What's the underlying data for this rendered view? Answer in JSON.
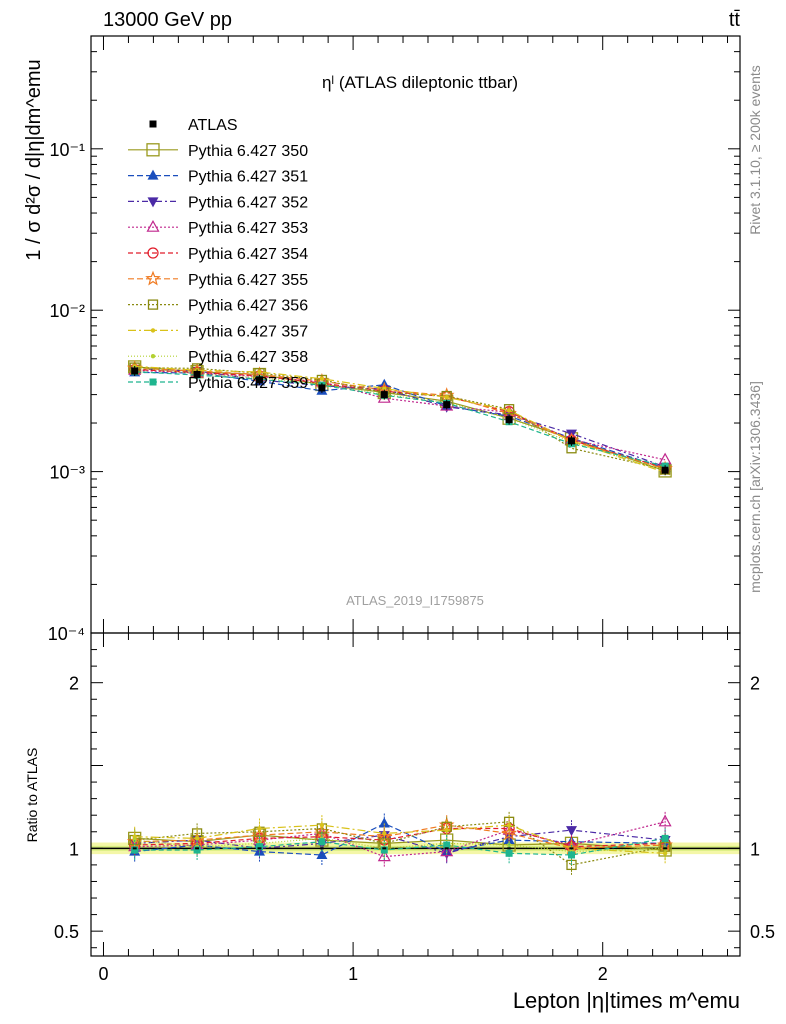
{
  "header": {
    "left": "13000 GeV pp",
    "right": "tt̄"
  },
  "side_labels": {
    "upper": "Rivet 3.1.10, ≥ 200k events",
    "lower": "mcplots.cern.ch [arXiv:1306.3436]"
  },
  "plot_title": "ηˡ (ATLAS dileptonic ttbar)",
  "analysis_label": "ATLAS_2019_I1759875",
  "chart_data": {
    "type": "line",
    "x_label": "Lepton |η|times m^emu",
    "y_label_top": "1 / σ d²σ / d|η|dm^emu",
    "y_label_ratio": "Ratio to ATLAS",
    "xlim": [
      -0.05,
      2.55
    ],
    "ylim_top": [
      0.0001,
      0.5
    ],
    "ylim_ratio": [
      0.35,
      2.3
    ],
    "log_y_top": true,
    "x_ticks": [
      "0",
      "1",
      "2"
    ],
    "y_ticks_top": [
      "10⁻¹",
      "10⁻²",
      "10⁻³",
      "10⁻⁴"
    ],
    "y_ticks_ratio": [
      "2",
      "1",
      "0.5"
    ],
    "x": [
      0.125,
      0.375,
      0.625,
      0.875,
      1.125,
      1.375,
      1.625,
      1.875,
      2.25
    ],
    "reference": {
      "name": "ATLAS",
      "color": "#000000",
      "values": [
        0.0042,
        0.004,
        0.0037,
        0.0033,
        0.003,
        0.0026,
        0.0021,
        0.00155,
        0.00102
      ]
    },
    "series": [
      {
        "name": "Pythia 6.427 350",
        "color": "#9a9a1e",
        "marker": "square-open",
        "dash": "solid",
        "ratio": [
          1.06,
          1.04,
          1.08,
          1.05,
          1.03,
          1.05,
          1.02,
          1.03,
          0.99
        ]
      },
      {
        "name": "Pythia 6.427 351",
        "color": "#1a4ebd",
        "marker": "triangle-up",
        "dash": "6,3",
        "ratio": [
          0.98,
          1.02,
          0.98,
          0.96,
          1.15,
          0.98,
          1.05,
          1.04,
          1.03
        ]
      },
      {
        "name": "Pythia 6.427 352",
        "color": "#4b2aa6",
        "marker": "triangle-down",
        "dash": "6,3,2,3",
        "ratio": [
          1.03,
          1.05,
          1.0,
          1.03,
          1.08,
          0.97,
          1.07,
          1.11,
          1.05
        ]
      },
      {
        "name": "Pythia 6.427 353",
        "color": "#c0278d",
        "marker": "triangle-open",
        "dash": "2,2",
        "ratio": [
          1.01,
          1.02,
          1.05,
          1.09,
          0.95,
          0.98,
          1.11,
          1.02,
          1.16
        ]
      },
      {
        "name": "Pythia 6.427 354",
        "color": "#e11c2a",
        "marker": "circle-open",
        "dash": "5,3",
        "ratio": [
          1.02,
          1.03,
          1.06,
          1.07,
          1.05,
          1.12,
          1.12,
          1.01,
          1.03
        ]
      },
      {
        "name": "Pythia 6.427 355",
        "color": "#f07b22",
        "marker": "star-open",
        "dash": "6,3",
        "ratio": [
          1.04,
          1.05,
          1.08,
          1.1,
          1.07,
          1.14,
          1.09,
          1.0,
          1.02
        ]
      },
      {
        "name": "Pythia 6.427 356",
        "color": "#8a8a10",
        "marker": "square-open-small",
        "dash": "2,2",
        "ratio": [
          1.05,
          1.09,
          1.1,
          1.12,
          1.03,
          1.13,
          1.16,
          0.9,
          1.01
        ]
      },
      {
        "name": "Pythia 6.427 357",
        "color": "#d9c21a",
        "marker": "dot",
        "dash": "8,3,2,3",
        "ratio": [
          1.07,
          1.06,
          1.12,
          1.14,
          1.09,
          1.11,
          1.14,
          1.0,
          0.97
        ]
      },
      {
        "name": "Pythia 6.427 358",
        "color": "#b3d132",
        "marker": "dot",
        "dash": "1,2",
        "ratio": [
          1.05,
          1.01,
          1.03,
          1.06,
          1.0,
          1.03,
          1.02,
          0.98,
          1.0
        ]
      },
      {
        "name": "Pythia 6.427 359",
        "color": "#1fb58f",
        "marker": "square-filled",
        "dash": "5,3",
        "ratio": [
          0.99,
          0.99,
          1.01,
          1.04,
          0.99,
          1.02,
          0.97,
          0.96,
          1.06
        ]
      }
    ]
  }
}
